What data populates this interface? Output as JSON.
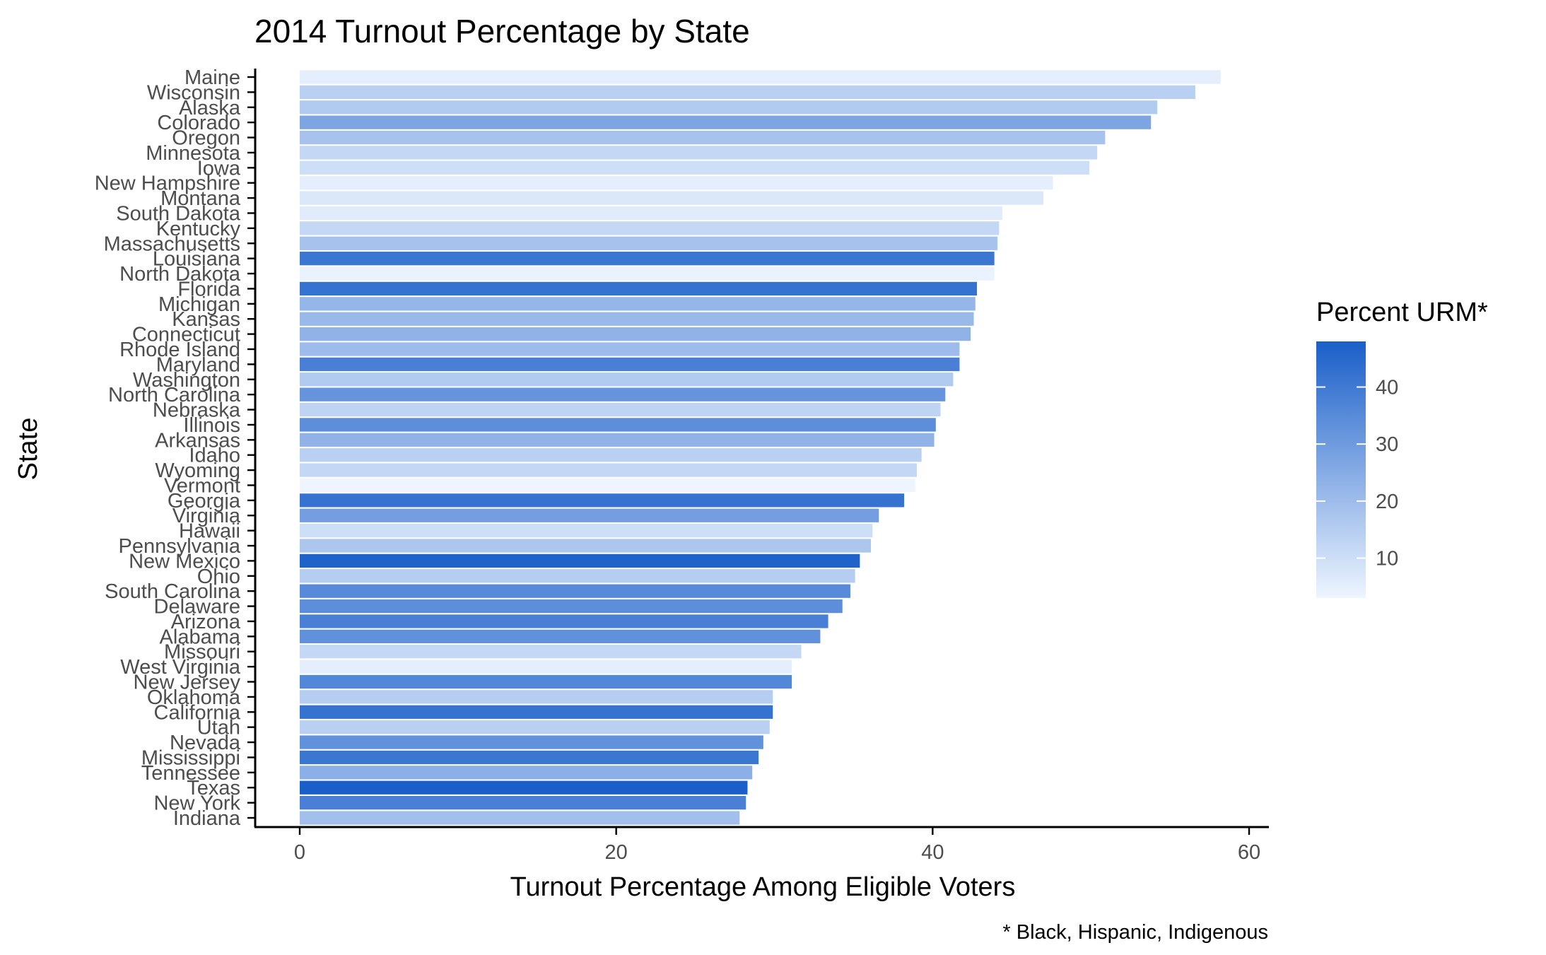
{
  "chart_data": {
    "type": "bar",
    "orientation": "horizontal",
    "title": "2014 Turnout Percentage by State",
    "xlabel": "Turnout Percentage Among Eligible Voters",
    "ylabel": "State",
    "caption": "* Black, Hispanic, Indigenous",
    "xlim": [
      0,
      60
    ],
    "xticks": [
      0,
      20,
      40,
      60
    ],
    "grid": false,
    "legend": {
      "title": "Percent URM*",
      "position": "right",
      "ticks": [
        10,
        20,
        30,
        40
      ],
      "range": [
        3,
        48
      ],
      "color_low": "#EEF5FF",
      "color_high": "#1A5FC9"
    },
    "categories": [
      "Maine",
      "Wisconsin",
      "Alaska",
      "Colorado",
      "Oregon",
      "Minnesota",
      "Iowa",
      "New Hampshire",
      "Montana",
      "South Dakota",
      "Kentucky",
      "Massachusetts",
      "Louisiana",
      "North Dakota",
      "Florida",
      "Michigan",
      "Kansas",
      "Connecticut",
      "Rhode Island",
      "Maryland",
      "Washington",
      "North Carolina",
      "Nebraska",
      "Illinois",
      "Arkansas",
      "Idaho",
      "Wyoming",
      "Vermont",
      "Georgia",
      "Virginia",
      "Hawaii",
      "Pennsylvania",
      "New Mexico",
      "Ohio",
      "South Carolina",
      "Delaware",
      "Arizona",
      "Alabama",
      "Missouri",
      "West Virginia",
      "New Jersey",
      "Oklahoma",
      "California",
      "Utah",
      "Nevada",
      "Mississippi",
      "Tennessee",
      "Texas",
      "New York",
      "Indiana"
    ],
    "values": [
      58.2,
      56.6,
      54.2,
      53.8,
      50.9,
      50.4,
      49.9,
      47.6,
      47.0,
      44.4,
      44.2,
      44.1,
      43.9,
      43.9,
      42.8,
      42.7,
      42.6,
      42.4,
      41.7,
      41.7,
      41.3,
      40.8,
      40.5,
      40.2,
      40.1,
      39.3,
      39.0,
      38.9,
      38.2,
      36.6,
      36.2,
      36.1,
      35.4,
      35.1,
      34.8,
      34.3,
      33.4,
      32.9,
      31.7,
      31.1,
      31.1,
      29.9,
      29.9,
      29.7,
      29.3,
      29.0,
      28.6,
      28.3,
      28.2,
      27.8
    ],
    "percent_urm": [
      5,
      14,
      16,
      27,
      18,
      12,
      10,
      5,
      7,
      6,
      12,
      18,
      41,
      4,
      42,
      22,
      21,
      23,
      20,
      38,
      16,
      32,
      13,
      34,
      23,
      14,
      12,
      3,
      42,
      29,
      10,
      17,
      47,
      15,
      35,
      34,
      38,
      33,
      12,
      5,
      36,
      15,
      42,
      14,
      33,
      41,
      24,
      48,
      38,
      19
    ]
  }
}
